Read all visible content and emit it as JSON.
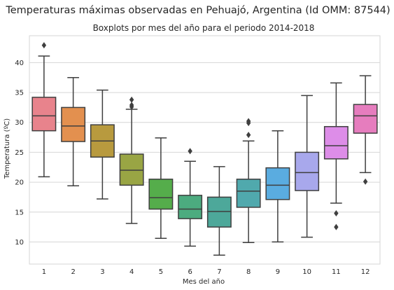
{
  "chart_data": {
    "type": "boxplot",
    "title": "Temperaturas máximas observadas en Pehuajó, Argentina (Id OMM: 87544)",
    "subtitle": "Boxplots por mes del año para el periodo 2014-2018",
    "xlabel": "Mes del año",
    "ylabel": "Temperatura (ºC)",
    "ylim": [
      6.3,
      44.5
    ],
    "yticks": [
      10,
      15,
      20,
      25,
      30,
      35,
      40
    ],
    "grid": "horizontal",
    "categories": [
      "1",
      "2",
      "3",
      "4",
      "5",
      "6",
      "7",
      "8",
      "9",
      "10",
      "11",
      "12"
    ],
    "boxes": [
      {
        "whisker_low": 20.9,
        "q1": 28.6,
        "median": 31.1,
        "q3": 34.2,
        "whisker_high": 41.1,
        "outliers": [
          42.9
        ],
        "color": "#e8838c"
      },
      {
        "whisker_low": 19.4,
        "q1": 26.8,
        "median": 29.4,
        "q3": 32.5,
        "whisker_high": 37.5,
        "outliers": [],
        "color": "#e3904f"
      },
      {
        "whisker_low": 17.2,
        "q1": 24.2,
        "median": 26.9,
        "q3": 29.6,
        "whisker_high": 35.4,
        "outliers": [],
        "color": "#b89a3e"
      },
      {
        "whisker_low": 13.1,
        "q1": 19.5,
        "median": 22.0,
        "q3": 24.7,
        "whisker_high": 32.2,
        "outliers": [
          32.6,
          32.9,
          33.8
        ],
        "color": "#99a544"
      },
      {
        "whisker_low": 10.6,
        "q1": 15.5,
        "median": 17.4,
        "q3": 20.5,
        "whisker_high": 27.4,
        "outliers": [],
        "color": "#55ad4b"
      },
      {
        "whisker_low": 9.3,
        "q1": 13.9,
        "median": 15.5,
        "q3": 17.8,
        "whisker_high": 23.5,
        "outliers": [
          25.2
        ],
        "color": "#4cab7f"
      },
      {
        "whisker_low": 7.8,
        "q1": 12.5,
        "median": 15.1,
        "q3": 17.5,
        "whisker_high": 22.6,
        "outliers": [],
        "color": "#4da89a"
      },
      {
        "whisker_low": 9.9,
        "q1": 15.8,
        "median": 18.5,
        "q3": 20.5,
        "whisker_high": 26.9,
        "outliers": [
          27.9,
          29.9,
          30.2
        ],
        "color": "#50a9ad"
      },
      {
        "whisker_low": 10.0,
        "q1": 17.1,
        "median": 19.5,
        "q3": 22.4,
        "whisker_high": 28.6,
        "outliers": [],
        "color": "#5aace0"
      },
      {
        "whisker_low": 10.8,
        "q1": 18.6,
        "median": 21.6,
        "q3": 25.0,
        "whisker_high": 34.5,
        "outliers": [],
        "color": "#a8a8ec"
      },
      {
        "whisker_low": 16.5,
        "q1": 23.9,
        "median": 26.1,
        "q3": 29.3,
        "whisker_high": 36.6,
        "outliers": [
          12.5,
          14.8
        ],
        "color": "#dd8de8"
      },
      {
        "whisker_low": 21.6,
        "q1": 28.2,
        "median": 31.1,
        "q3": 33.0,
        "whisker_high": 37.8,
        "outliers": [
          20.1
        ],
        "color": "#e67dbe"
      }
    ]
  }
}
